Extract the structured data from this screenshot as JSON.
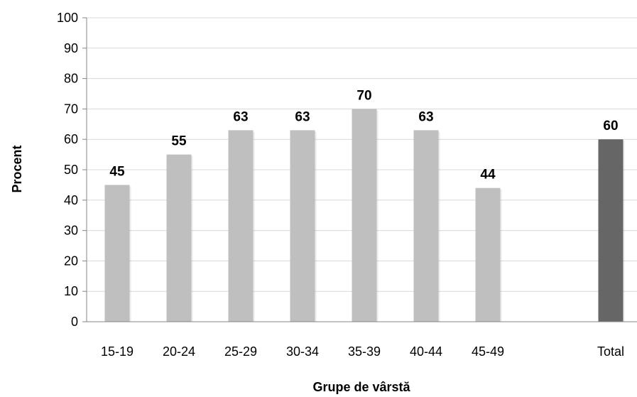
{
  "chart_data": {
    "type": "bar",
    "title": "",
    "xlabel": "Grupe de vârstă",
    "ylabel": "Procent",
    "ylim": [
      0,
      100
    ],
    "yticks": [
      0,
      10,
      20,
      30,
      40,
      50,
      60,
      70,
      80,
      90,
      100
    ],
    "grid": true,
    "legend": "none",
    "categories": [
      "15-19",
      "20-24",
      "25-29",
      "30-34",
      "35-39",
      "40-44",
      "45-49",
      "Total"
    ],
    "values": [
      45,
      55,
      63,
      63,
      70,
      63,
      44,
      60
    ],
    "data_labels": [
      "45",
      "55",
      "63",
      "63",
      "70",
      "63",
      "44",
      "60"
    ],
    "colors": {
      "bar": "#bfbfbf",
      "total_bar": "#666666",
      "grid": "#d9d9d9",
      "axis": "#868686"
    }
  }
}
